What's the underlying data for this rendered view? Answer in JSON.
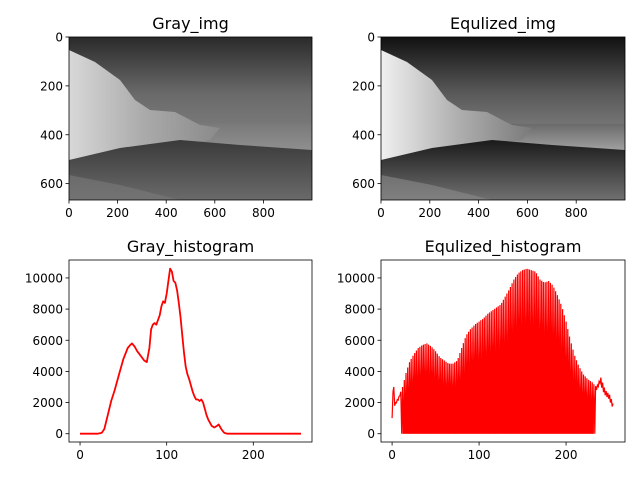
{
  "chart_data": [
    {
      "type": "image",
      "title": "Gray_img",
      "image_description_icon": "grayscale-coastal-cliff-photo",
      "x_ticks": [
        0,
        200,
        400,
        600,
        800
      ],
      "y_ticks": [
        0,
        200,
        400,
        600
      ],
      "xlim": [
        0,
        1000
      ],
      "ylim": [
        667,
        0
      ],
      "colormap": "gray"
    },
    {
      "type": "image",
      "title": "Equlized_img",
      "image_description_icon": "equalized-coastal-cliff-photo",
      "x_ticks": [
        0,
        200,
        400,
        600,
        800
      ],
      "y_ticks": [
        0,
        200,
        400,
        600
      ],
      "xlim": [
        0,
        1000
      ],
      "ylim": [
        667,
        0
      ],
      "colormap": "gray"
    },
    {
      "type": "line",
      "title": "Gray_histogram",
      "color": "#ff0000",
      "xlim": [
        -12.75,
        267.75
      ],
      "ylim": [
        -531,
        11151
      ],
      "x_ticks": [
        0,
        100,
        200
      ],
      "y_ticks": [
        0,
        2000,
        4000,
        6000,
        8000,
        10000
      ],
      "x": [
        0,
        10,
        20,
        25,
        28,
        32,
        36,
        40,
        45,
        50,
        55,
        58,
        60,
        63,
        66,
        70,
        74,
        77,
        80,
        82,
        84,
        86,
        88,
        90,
        92,
        94,
        96,
        98,
        100,
        102,
        104,
        106,
        108,
        110,
        112,
        114,
        116,
        118,
        120,
        122,
        124,
        126,
        128,
        130,
        132,
        134,
        136,
        138,
        140,
        142,
        144,
        146,
        148,
        150,
        152,
        155,
        158,
        160,
        163,
        166,
        168,
        170,
        172,
        174,
        176,
        180,
        190,
        200,
        220,
        240,
        255
      ],
      "y": [
        0,
        0,
        0,
        50,
        300,
        1200,
        2100,
        2800,
        3800,
        4800,
        5500,
        5700,
        5800,
        5600,
        5300,
        5000,
        4700,
        4600,
        5500,
        6700,
        7000,
        7100,
        7000,
        7300,
        7600,
        8200,
        8500,
        8400,
        9000,
        9800,
        10600,
        10400,
        9800,
        9700,
        9200,
        8400,
        7500,
        6300,
        5200,
        4300,
        3800,
        3500,
        3100,
        2700,
        2400,
        2200,
        2200,
        2100,
        2200,
        2000,
        1600,
        1200,
        900,
        700,
        500,
        400,
        500,
        600,
        300,
        80,
        30,
        0,
        0,
        0,
        0,
        0,
        0,
        0,
        0,
        0,
        0
      ]
    },
    {
      "type": "line",
      "title": "Equlized_histogram",
      "color": "#ff0000",
      "xlim": [
        -12.75,
        267.75
      ],
      "ylim": [
        -531,
        11151
      ],
      "x_ticks": [
        0,
        100,
        200
      ],
      "y_ticks": [
        0,
        2000,
        4000,
        6000,
        8000,
        10000
      ],
      "envelope_x": [
        0,
        2,
        4,
        8,
        12,
        16,
        20,
        25,
        30,
        35,
        40,
        45,
        50,
        55,
        60,
        65,
        70,
        75,
        80,
        85,
        90,
        95,
        100,
        105,
        110,
        115,
        120,
        125,
        130,
        135,
        140,
        145,
        150,
        155,
        160,
        165,
        170,
        175,
        180,
        185,
        190,
        195,
        200,
        205,
        210,
        215,
        220,
        225,
        230,
        235,
        240,
        245,
        250,
        255
      ],
      "envelope_y": [
        1000,
        3000,
        2000,
        2400,
        3000,
        3900,
        4600,
        5100,
        5500,
        5700,
        5800,
        5600,
        5300,
        4900,
        4700,
        4500,
        4500,
        4700,
        5500,
        6300,
        6700,
        7000,
        7200,
        7400,
        7700,
        7900,
        8100,
        8300,
        8800,
        9300,
        9900,
        10300,
        10500,
        10600,
        10500,
        10400,
        9900,
        9700,
        9800,
        9500,
        8900,
        8200,
        7200,
        6000,
        5000,
        4300,
        3800,
        3500,
        3300,
        3000,
        3600,
        2800,
        2500,
        1800
      ],
      "comb_step": 2,
      "comb_floor": 0
    }
  ]
}
